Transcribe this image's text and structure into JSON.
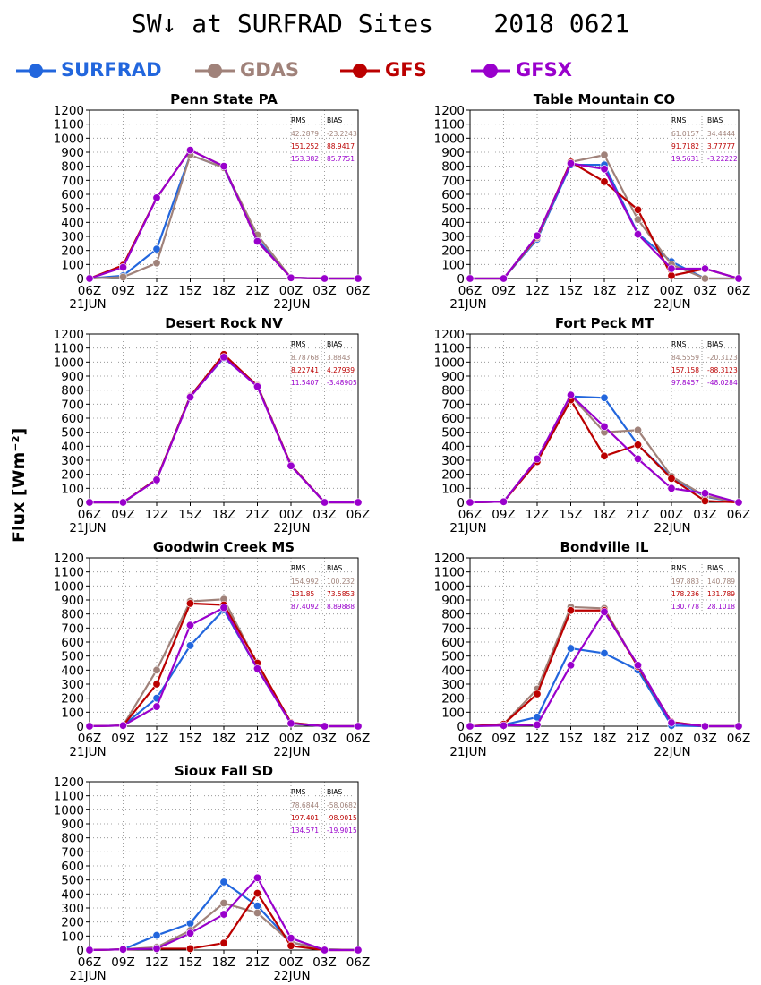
{
  "title": "SW↓ at SURFRAD Sites    2018 0621",
  "ylabel": "Flux [Wm⁻²]",
  "colors": {
    "SURFRAD": "#2266dd",
    "GDAS": "#a0827a",
    "GFS": "#bb0000",
    "GFSX": "#9900cc"
  },
  "legend": [
    {
      "name": "SURFRAD",
      "color": "#2266dd"
    },
    {
      "name": "GDAS",
      "color": "#a0827a"
    },
    {
      "name": "GFS",
      "color": "#bb0000"
    },
    {
      "name": "GFSX",
      "color": "#9900cc"
    }
  ],
  "chart_data": [
    {
      "type": "line",
      "title": "Penn State PA",
      "x": [
        "06Z",
        "09Z",
        "12Z",
        "15Z",
        "18Z",
        "21Z",
        "00Z",
        "03Z",
        "06Z"
      ],
      "date_labels": [
        "21JUN",
        "22JUN"
      ],
      "ylim": [
        0,
        1200
      ],
      "grid": true,
      "stats_header": [
        "RMS",
        "BIAS"
      ],
      "stats": [
        {
          "name": "GDAS",
          "rms": "42.2879",
          "bias": "-23.2243"
        },
        {
          "name": "GFS",
          "rms": "151.252",
          "bias": "88.9417"
        },
        {
          "name": "GFSX",
          "rms": "153.382",
          "bias": "85.7751"
        }
      ],
      "series": [
        {
          "name": "SURFRAD",
          "values": [
            0,
            20,
            210,
            880,
            790,
            280,
            5,
            0,
            0
          ]
        },
        {
          "name": "GDAS",
          "values": [
            0,
            10,
            110,
            880,
            790,
            310,
            5,
            0,
            0
          ]
        },
        {
          "name": "GFS",
          "values": [
            0,
            95,
            575,
            915,
            800,
            265,
            5,
            0,
            0
          ]
        },
        {
          "name": "GFSX",
          "values": [
            0,
            80,
            575,
            915,
            800,
            265,
            5,
            0,
            0
          ]
        }
      ]
    },
    {
      "type": "line",
      "title": "Table Mountain CO",
      "x": [
        "06Z",
        "09Z",
        "12Z",
        "15Z",
        "18Z",
        "21Z",
        "00Z",
        "03Z",
        "06Z"
      ],
      "date_labels": [
        "21JUN",
        "22JUN"
      ],
      "ylim": [
        0,
        1200
      ],
      "grid": true,
      "stats_header": [
        "RMS",
        "BIAS"
      ],
      "stats": [
        {
          "name": "GDAS",
          "rms": "61.0157",
          "bias": "34.4444"
        },
        {
          "name": "GFS",
          "rms": "91.7182",
          "bias": "3.77777"
        },
        {
          "name": "GFSX",
          "rms": "19.5631",
          "bias": "-3.22222"
        }
      ],
      "series": [
        {
          "name": "SURFRAD",
          "values": [
            0,
            0,
            280,
            810,
            810,
            320,
            120,
            0,
            0
          ]
        },
        {
          "name": "GDAS",
          "values": [
            0,
            0,
            290,
            830,
            880,
            420,
            100,
            0,
            0
          ]
        },
        {
          "name": "GFS",
          "values": [
            0,
            0,
            300,
            830,
            690,
            490,
            20,
            70,
            0
          ]
        },
        {
          "name": "GFSX",
          "values": [
            0,
            0,
            305,
            820,
            780,
            315,
            70,
            70,
            0
          ]
        }
      ]
    },
    {
      "type": "line",
      "title": "Desert Rock NV",
      "x": [
        "06Z",
        "09Z",
        "12Z",
        "15Z",
        "18Z",
        "21Z",
        "00Z",
        "03Z",
        "06Z"
      ],
      "date_labels": [
        "21JUN",
        "22JUN"
      ],
      "ylim": [
        0,
        1200
      ],
      "grid": true,
      "stats_header": [
        "RMS",
        "BIAS"
      ],
      "stats": [
        {
          "name": "GDAS",
          "rms": "8.78768",
          "bias": "3.8843"
        },
        {
          "name": "GFS",
          "rms": "8.22741",
          "bias": "4.27939"
        },
        {
          "name": "GFSX",
          "rms": "11.5407",
          "bias": "-3.48905"
        }
      ],
      "series": [
        {
          "name": "SURFRAD",
          "values": [
            0,
            0,
            165,
            755,
            1030,
            830,
            265,
            0,
            0
          ]
        },
        {
          "name": "GDAS",
          "values": [
            0,
            0,
            165,
            760,
            1040,
            835,
            265,
            0,
            0
          ]
        },
        {
          "name": "GFS",
          "values": [
            0,
            0,
            165,
            755,
            1055,
            830,
            265,
            0,
            0
          ]
        },
        {
          "name": "GFSX",
          "values": [
            0,
            0,
            160,
            750,
            1035,
            825,
            260,
            0,
            0
          ]
        }
      ]
    },
    {
      "type": "line",
      "title": "Fort Peck MT",
      "x": [
        "06Z",
        "09Z",
        "12Z",
        "15Z",
        "18Z",
        "21Z",
        "00Z",
        "03Z",
        "06Z"
      ],
      "date_labels": [
        "21JUN",
        "22JUN"
      ],
      "ylim": [
        0,
        1200
      ],
      "grid": true,
      "stats_header": [
        "RMS",
        "BIAS"
      ],
      "stats": [
        {
          "name": "GDAS",
          "rms": "84.5559",
          "bias": "-20.3123"
        },
        {
          "name": "GFS",
          "rms": "157.158",
          "bias": "-88.3123"
        },
        {
          "name": "GFSX",
          "rms": "97.8457",
          "bias": "-48.0284"
        }
      ],
      "series": [
        {
          "name": "SURFRAD",
          "values": [
            0,
            5,
            300,
            755,
            745,
            410,
            180,
            40,
            0
          ]
        },
        {
          "name": "GDAS",
          "values": [
            0,
            5,
            305,
            760,
            500,
            515,
            185,
            45,
            0
          ]
        },
        {
          "name": "GFS",
          "values": [
            0,
            5,
            290,
            730,
            330,
            410,
            170,
            10,
            0
          ]
        },
        {
          "name": "GFSX",
          "values": [
            0,
            5,
            310,
            765,
            540,
            310,
            100,
            65,
            0
          ]
        }
      ]
    },
    {
      "type": "line",
      "title": "Goodwin Creek MS",
      "x": [
        "06Z",
        "09Z",
        "12Z",
        "15Z",
        "18Z",
        "21Z",
        "00Z",
        "03Z",
        "06Z"
      ],
      "date_labels": [
        "21JUN",
        "22JUN"
      ],
      "ylim": [
        0,
        1200
      ],
      "grid": true,
      "stats_header": [
        "RMS",
        "BIAS"
      ],
      "stats": [
        {
          "name": "GDAS",
          "rms": "154.992",
          "bias": "100.232"
        },
        {
          "name": "GFS",
          "rms": "131.85",
          "bias": "73.5853"
        },
        {
          "name": "GFSX",
          "rms": "87.4092",
          "bias": "8.89888"
        }
      ],
      "series": [
        {
          "name": "SURFRAD",
          "values": [
            0,
            5,
            200,
            575,
            830,
            410,
            20,
            0,
            0
          ]
        },
        {
          "name": "GDAS",
          "values": [
            0,
            5,
            400,
            890,
            905,
            440,
            25,
            0,
            0
          ]
        },
        {
          "name": "GFS",
          "values": [
            0,
            5,
            300,
            875,
            865,
            450,
            25,
            0,
            0
          ]
        },
        {
          "name": "GFSX",
          "values": [
            0,
            5,
            140,
            720,
            845,
            410,
            20,
            0,
            0
          ]
        }
      ]
    },
    {
      "type": "line",
      "title": "Bondville IL",
      "x": [
        "06Z",
        "09Z",
        "12Z",
        "15Z",
        "18Z",
        "21Z",
        "00Z",
        "03Z",
        "06Z"
      ],
      "date_labels": [
        "21JUN",
        "22JUN"
      ],
      "ylim": [
        0,
        1200
      ],
      "grid": true,
      "stats_header": [
        "RMS",
        "BIAS"
      ],
      "stats": [
        {
          "name": "GDAS",
          "rms": "197.883",
          "bias": "140.789"
        },
        {
          "name": "GFS",
          "rms": "178.236",
          "bias": "131.789"
        },
        {
          "name": "GFSX",
          "rms": "130.778",
          "bias": "28.1018"
        }
      ],
      "series": [
        {
          "name": "SURFRAD",
          "values": [
            0,
            10,
            65,
            555,
            520,
            400,
            5,
            0,
            0
          ]
        },
        {
          "name": "GDAS",
          "values": [
            0,
            15,
            265,
            850,
            840,
            425,
            30,
            0,
            0
          ]
        },
        {
          "name": "GFS",
          "values": [
            0,
            15,
            230,
            825,
            825,
            425,
            30,
            0,
            0
          ]
        },
        {
          "name": "GFSX",
          "values": [
            0,
            5,
            10,
            435,
            815,
            435,
            25,
            0,
            0
          ]
        }
      ]
    },
    {
      "type": "line",
      "title": "Sioux Fall SD",
      "x": [
        "06Z",
        "09Z",
        "12Z",
        "15Z",
        "18Z",
        "21Z",
        "00Z",
        "03Z",
        "06Z"
      ],
      "date_labels": [
        "21JUN",
        "22JUN"
      ],
      "ylim": [
        0,
        1200
      ],
      "grid": true,
      "stats_header": [
        "RMS",
        "BIAS"
      ],
      "stats": [
        {
          "name": "GDAS",
          "rms": "78.6844",
          "bias": "-58.0682"
        },
        {
          "name": "GFS",
          "rms": "197.401",
          "bias": "-98.9015"
        },
        {
          "name": "GFSX",
          "rms": "134.571",
          "bias": "-19.9015"
        }
      ],
      "series": [
        {
          "name": "SURFRAD",
          "values": [
            0,
            5,
            105,
            190,
            485,
            315,
            55,
            5,
            0
          ]
        },
        {
          "name": "GDAS",
          "values": [
            0,
            5,
            20,
            140,
            335,
            265,
            55,
            5,
            0
          ]
        },
        {
          "name": "GFS",
          "values": [
            0,
            5,
            10,
            10,
            50,
            405,
            30,
            0,
            0
          ]
        },
        {
          "name": "GFSX",
          "values": [
            0,
            5,
            10,
            120,
            255,
            515,
            85,
            0,
            0
          ]
        }
      ]
    }
  ]
}
